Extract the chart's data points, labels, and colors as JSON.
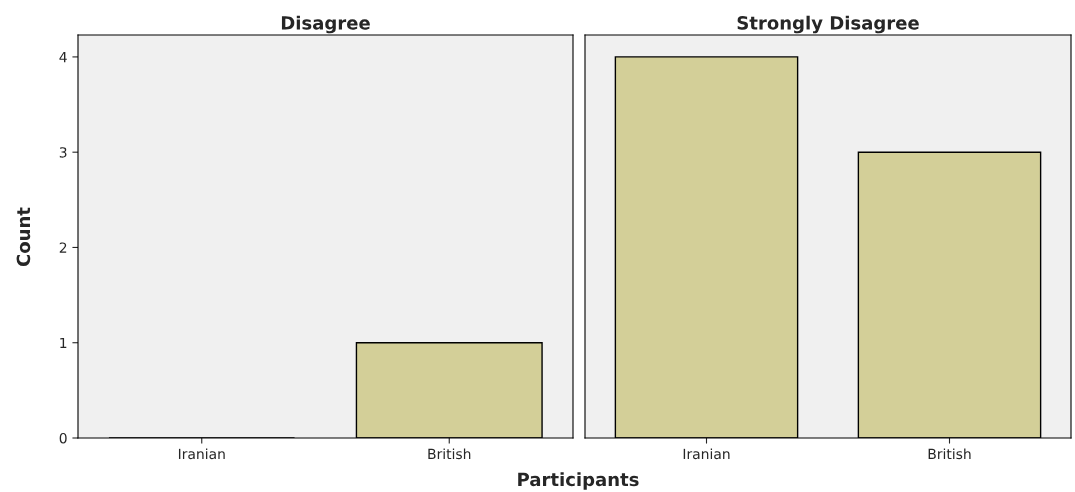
{
  "chart_data": [
    {
      "type": "bar",
      "title": "Disagree",
      "categories": [
        "Iranian",
        "British"
      ],
      "values": [
        0,
        1
      ],
      "color": "#d3cf98",
      "ylim": [
        0,
        4.23
      ],
      "yticks": [
        0,
        1,
        2,
        3,
        4
      ],
      "ylabel": "Count",
      "xlabel": "Participants"
    },
    {
      "type": "bar",
      "title": "Strongly Disagree",
      "categories": [
        "Iranian",
        "British"
      ],
      "values": [
        4,
        3
      ],
      "color": "#d3cf98",
      "ylim": [
        0,
        4.23
      ],
      "yticks": [
        0,
        1,
        2,
        3,
        4
      ],
      "tick_labels": "x"
    }
  ]
}
